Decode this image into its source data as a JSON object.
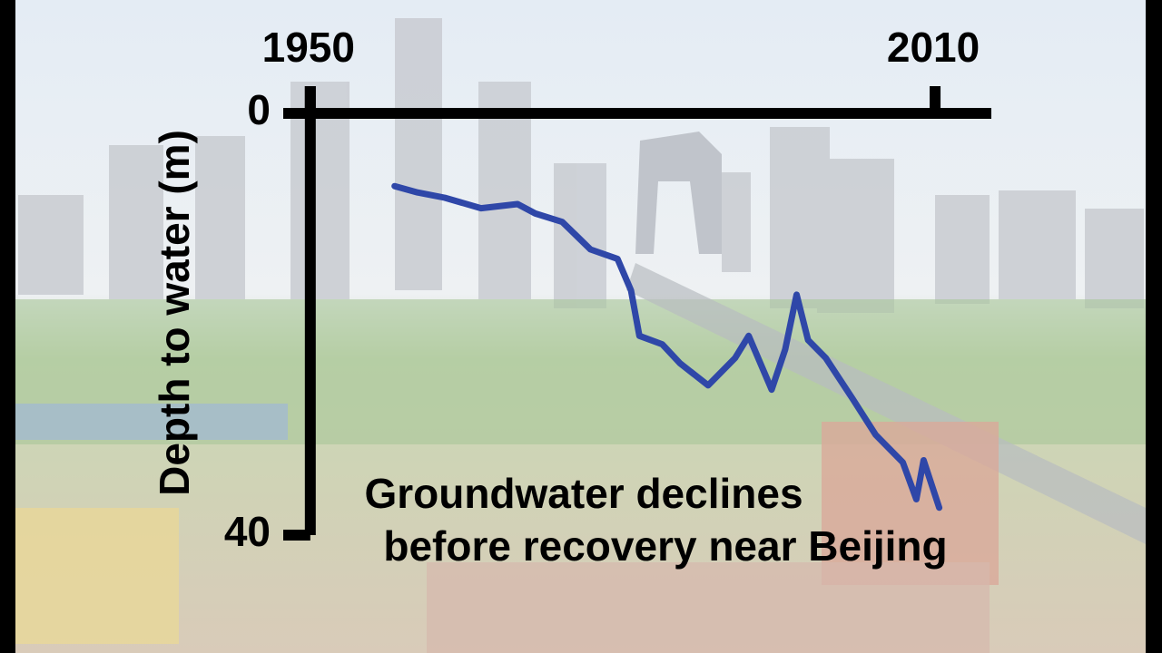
{
  "chart_data": {
    "type": "line",
    "title": "Groundwater declines",
    "subtitle": "before recovery near Beijing",
    "y_label": "Depth to water (m)",
    "x": [
      1958.1,
      1960.3,
      1962.9,
      1966.4,
      1969.9,
      1971.6,
      1974.2,
      1976.9,
      1979.5,
      1980.8,
      1981.6,
      1983.8,
      1985.5,
      1988.2,
      1990.8,
      1992.1,
      1994.3,
      1995.6,
      1996.7,
      1997.8,
      1999.5,
      2002.1,
      2004.3,
      2006.9,
      2008.2,
      2008.9,
      2010.4
    ],
    "series": [
      {
        "name": "Depth to water",
        "color": "#2f47a8",
        "values": [
          6.9,
          7.5,
          8.0,
          9.0,
          8.6,
          9.5,
          10.3,
          12.9,
          13.8,
          16.8,
          21.1,
          21.9,
          23.7,
          25.8,
          23.2,
          21.1,
          26.2,
          22.4,
          17.2,
          21.5,
          23.2,
          27.1,
          30.5,
          33.1,
          36.6,
          32.9,
          37.4
        ]
      }
    ],
    "xlim": [
      1947.4,
      2015.4
    ],
    "xticks": [
      1950,
      2010
    ],
    "ylim": [
      0,
      40
    ],
    "yticks": [
      0,
      40
    ],
    "y_inverted": true
  }
}
